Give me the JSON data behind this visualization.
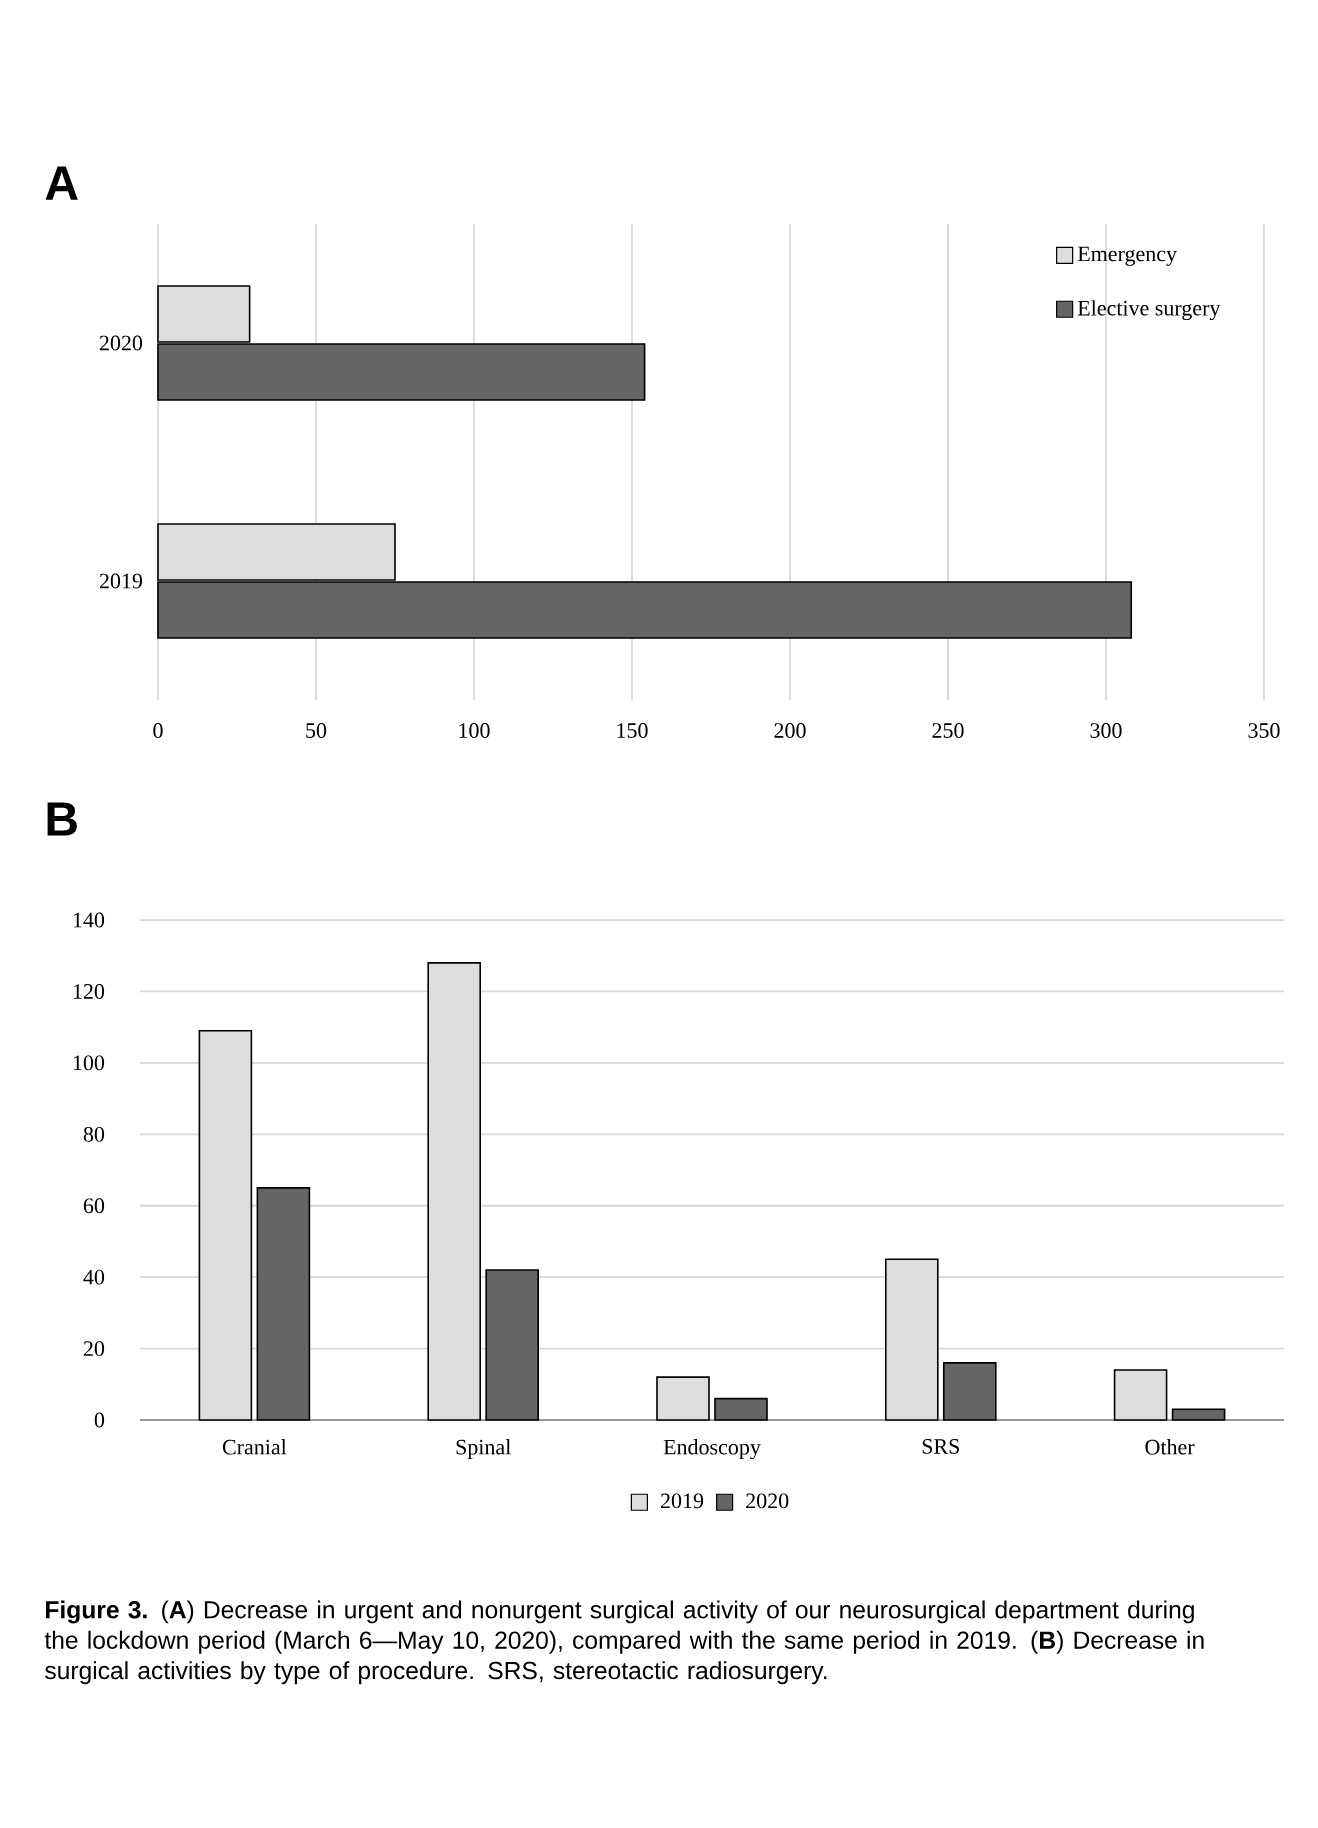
{
  "chart_data": [
    {
      "type": "bar",
      "title": "A",
      "orientation": "horizontal",
      "categories": [
        "2020",
        "2019"
      ],
      "series": [
        {
          "name": "Emergency",
          "color": "#dcdddf",
          "values": [
            29,
            75
          ]
        },
        {
          "name": "Elective surgery",
          "color": "#656567",
          "values": [
            154,
            308
          ]
        }
      ],
      "xlim": [
        0,
        350
      ],
      "xticks": [
        0,
        50,
        100,
        150,
        200,
        250,
        300,
        350
      ],
      "grid": "x",
      "legend": "top right"
    },
    {
      "type": "bar",
      "title": "B",
      "categories": [
        "Cranial",
        "Spinal",
        "Endoscopy",
        "SRS",
        "Other"
      ],
      "series": [
        {
          "name": "2019",
          "color": "#dcdddf",
          "values": [
            109,
            128,
            12,
            45,
            14
          ]
        },
        {
          "name": "2020",
          "color": "#656567",
          "values": [
            65,
            42,
            6,
            16,
            3
          ]
        }
      ],
      "ylim": [
        0,
        140
      ],
      "yticks": [
        0,
        20,
        40,
        60,
        80,
        100,
        120,
        140
      ],
      "grid": "y",
      "legend": "bottom",
      "annotations": [
        "**Figure 3.** (**A**) Decrease in urgent and nonurgent surgical activity of our neurosurgical department during the lockdown period (March 6—May 10, 2020), compared with the same period in 2019. (**B**) Decrease in surgical activities by type of procedure. SRS, stereotactic radiosurgery."
      ]
    }
  ]
}
